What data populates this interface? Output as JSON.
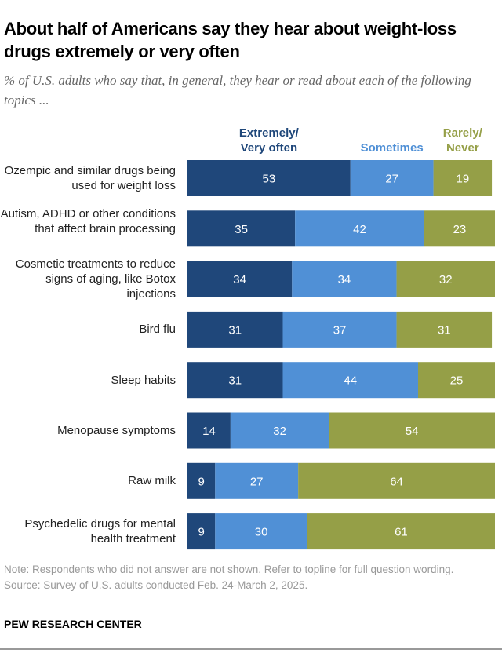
{
  "chart_data": {
    "type": "bar",
    "stacked": true,
    "orientation": "horizontal",
    "title": "About half of Americans say they hear about weight-loss drugs extremely or very often",
    "subtitle": "% of U.S. adults who say that, in general, they hear or read about each of the following topics ...",
    "categories": [
      "Ozempic and similar drugs being used for weight loss",
      "Autism, ADHD or other conditions that affect brain processing",
      "Cosmetic treatments to reduce signs of aging, like Botox injections",
      "Bird flu",
      "Sleep habits",
      "Menopause symptoms",
      "Raw milk",
      "Psychedelic drugs for mental health treatment"
    ],
    "series": [
      {
        "name": "Extremely/ Very often",
        "color": "#1f477a",
        "values": [
          53,
          35,
          34,
          31,
          31,
          14,
          9,
          9
        ]
      },
      {
        "name": "Sometimes",
        "color": "#5090d6",
        "values": [
          27,
          42,
          34,
          37,
          44,
          32,
          27,
          30
        ]
      },
      {
        "name": "Rarely/ Never",
        "color": "#959f47",
        "values": [
          19,
          23,
          32,
          31,
          25,
          54,
          64,
          61
        ]
      }
    ],
    "legend": "top",
    "xlim": [
      0,
      100
    ],
    "grid": false
  },
  "note": "Note: Respondents who did not answer are not shown. Refer to topline for full question wording.",
  "source": "Source: Survey of U.S. adults conducted Feb. 24-March 2, 2025.",
  "brand": "PEW RESEARCH CENTER"
}
